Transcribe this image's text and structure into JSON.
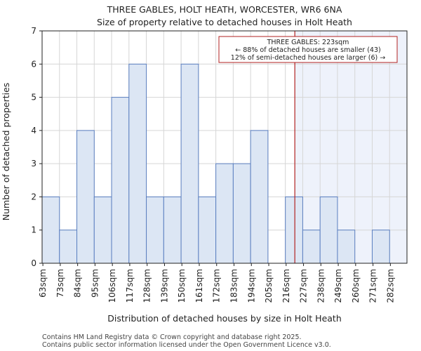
{
  "chart_data": {
    "type": "bar",
    "title": "THREE GABLES, HOLT HEATH, WORCESTER, WR6 6NA",
    "subtitle": "Size of property relative to detached houses in Holt Heath",
    "xlabel": "Distribution of detached houses by size in Holt Heath",
    "ylabel": "Number of detached properties",
    "bin_edges": [
      63,
      74,
      85,
      96,
      107,
      118,
      129,
      140,
      151,
      162,
      173,
      184,
      195,
      206,
      217,
      228,
      239,
      250,
      261,
      272,
      283,
      294
    ],
    "categories": [
      "63sqm",
      "73sqm",
      "84sqm",
      "95sqm",
      "106sqm",
      "117sqm",
      "128sqm",
      "139sqm",
      "150sqm",
      "161sqm",
      "172sqm",
      "183sqm",
      "194sqm",
      "205sqm",
      "216sqm",
      "227sqm",
      "238sqm",
      "249sqm",
      "260sqm",
      "271sqm",
      "282sqm"
    ],
    "values": [
      2,
      1,
      4,
      2,
      5,
      6,
      2,
      2,
      6,
      2,
      3,
      3,
      4,
      0,
      2,
      1,
      2,
      1,
      0,
      1,
      0
    ],
    "yticks": [
      0,
      1,
      2,
      3,
      4,
      5,
      6,
      7
    ],
    "ylim": [
      0,
      7
    ],
    "grid": true,
    "property_marker": {
      "value": 223,
      "annotation_lines": [
        "THREE GABLES: 223sqm",
        "← 88% of detached houses are smaller (43)",
        "12% of semi-detached houses are larger (6) →"
      ]
    },
    "colors": {
      "bar_fill": "#dce6f4",
      "bar_edge": "#5b7fc0",
      "marker_line": "#b22222",
      "highlight_region": "#eef2fb",
      "grid": "#d6d6d6"
    }
  },
  "footer": {
    "line1": "Contains HM Land Registry data © Crown copyright and database right 2025.",
    "line2": "Contains public sector information licensed under the Open Government Licence v3.0."
  }
}
